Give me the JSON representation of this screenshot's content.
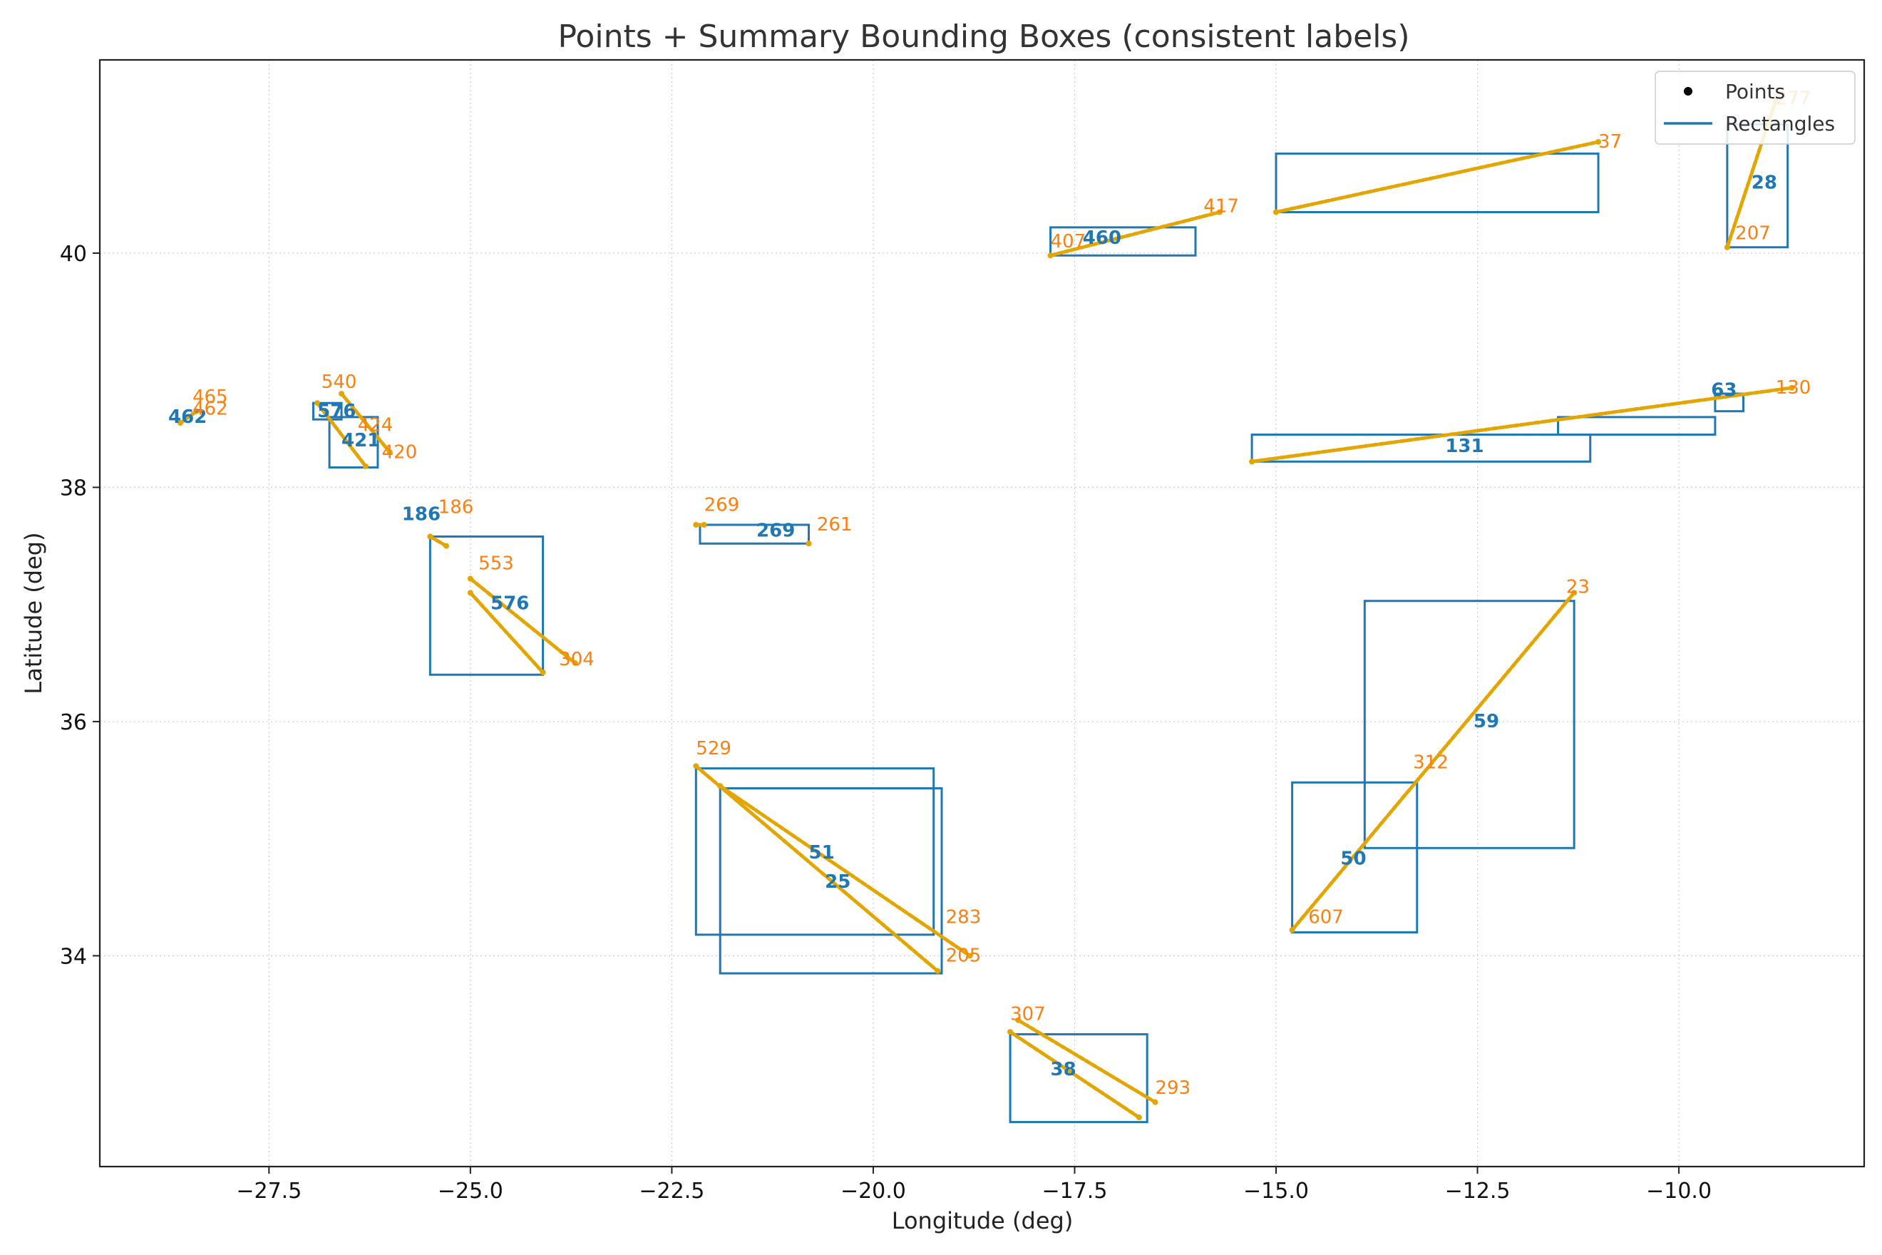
{
  "chart_data": {
    "type": "scatter",
    "title": "Points + Summary Bounding Boxes (consistent labels)",
    "xlabel": "Longitude (deg)",
    "ylabel": "Latitude (deg)",
    "xlim": [
      -29.6,
      -7.7
    ],
    "ylim": [
      32.2,
      41.65
    ],
    "xticks": [
      -27.5,
      -25.0,
      -22.5,
      -20.0,
      -17.5,
      -15.0,
      -12.5,
      -10.0
    ],
    "xtick_labels": [
      "−27.5",
      "−25.0",
      "−22.5",
      "−20.0",
      "−17.5",
      "−15.0",
      "−12.5",
      "−10.0"
    ],
    "yticks": [
      34,
      36,
      38,
      40
    ],
    "ytick_labels": [
      "34",
      "36",
      "38",
      "40"
    ],
    "grid": true,
    "legend_position": "top-right",
    "legend": [
      {
        "label": "Points",
        "marker": "dot",
        "color": "#000000"
      },
      {
        "label": "Rectangles",
        "marker": "line",
        "color": "#1f77b4"
      }
    ],
    "colors": {
      "points": "#e3a500",
      "point_labels": "#ff7f0e",
      "rectangles": "#1f77b4",
      "rect_labels": "#1f77b4"
    },
    "point_tracks": [
      {
        "from": [
          -15.0,
          40.35
        ],
        "to": [
          -11.0,
          40.95
        ]
      },
      {
        "from": [
          -17.8,
          39.98
        ],
        "to": [
          -15.7,
          40.35
        ]
      },
      {
        "from": [
          -9.4,
          40.05
        ],
        "to": [
          -8.8,
          41.3
        ]
      },
      {
        "from": [
          -15.3,
          38.22
        ],
        "to": [
          -8.6,
          38.85
        ]
      },
      {
        "from": [
          -14.8,
          34.22
        ],
        "to": [
          -11.3,
          37.1
        ]
      },
      {
        "from": [
          -22.2,
          35.62
        ],
        "to": [
          -19.2,
          33.87
        ]
      },
      {
        "from": [
          -21.9,
          35.45
        ],
        "to": [
          -18.8,
          34.0
        ]
      },
      {
        "from": [
          -25.0,
          37.1
        ],
        "to": [
          -24.1,
          36.42
        ]
      },
      {
        "from": [
          -25.0,
          37.22
        ],
        "to": [
          -23.7,
          36.5
        ]
      },
      {
        "from": [
          -18.3,
          33.35
        ],
        "to": [
          -16.7,
          32.62
        ]
      },
      {
        "from": [
          -18.2,
          33.45
        ],
        "to": [
          -16.5,
          32.75
        ]
      },
      {
        "from": [
          -26.9,
          38.72
        ],
        "to": [
          -26.3,
          38.18
        ]
      },
      {
        "from": [
          -26.6,
          38.8
        ],
        "to": [
          -26.0,
          38.3
        ]
      },
      {
        "from": [
          -25.5,
          37.58
        ],
        "to": [
          -25.3,
          37.5
        ]
      },
      {
        "from": [
          -28.6,
          38.55
        ],
        "to": [
          -28.4,
          38.65
        ]
      },
      {
        "from": [
          -22.2,
          37.68
        ],
        "to": [
          -22.1,
          37.68
        ]
      },
      {
        "from": [
          -20.8,
          37.52
        ],
        "to": [
          -20.8,
          37.52
        ]
      }
    ],
    "rectangles": [
      {
        "x0": -15.0,
        "x1": -11.0,
        "y0": 40.35,
        "y1": 40.85
      },
      {
        "x0": -17.8,
        "x1": -16.0,
        "y0": 39.98,
        "y1": 40.22
      },
      {
        "x0": -9.4,
        "x1": -8.65,
        "y0": 40.05,
        "y1": 41.1
      },
      {
        "x0": -15.3,
        "x1": -11.1,
        "y0": 38.22,
        "y1": 38.45
      },
      {
        "x0": -11.5,
        "x1": -9.55,
        "y0": 38.45,
        "y1": 38.6
      },
      {
        "x0": -9.55,
        "x1": -9.2,
        "y0": 38.65,
        "y1": 38.8
      },
      {
        "x0": -13.9,
        "x1": -11.3,
        "y0": 34.92,
        "y1": 37.03
      },
      {
        "x0": -14.8,
        "x1": -13.25,
        "y0": 34.2,
        "y1": 35.48
      },
      {
        "x0": -22.2,
        "x1": -19.25,
        "y0": 34.18,
        "y1": 35.6
      },
      {
        "x0": -21.9,
        "x1": -19.15,
        "y0": 33.85,
        "y1": 35.43
      },
      {
        "x0": -25.5,
        "x1": -24.1,
        "y0": 36.4,
        "y1": 37.58
      },
      {
        "x0": -22.15,
        "x1": -20.8,
        "y0": 37.52,
        "y1": 37.68
      },
      {
        "x0": -18.3,
        "x1": -16.6,
        "y0": 32.58,
        "y1": 33.33
      },
      {
        "x0": -26.75,
        "x1": -26.15,
        "y0": 38.17,
        "y1": 38.6
      },
      {
        "x0": -26.95,
        "x1": -26.6,
        "y0": 38.58,
        "y1": 38.72
      }
    ],
    "point_labels": [
      {
        "text": "186",
        "x": -25.4,
        "y": 37.78
      },
      {
        "text": "269",
        "x": -22.1,
        "y": 37.8
      },
      {
        "text": "261",
        "x": -20.7,
        "y": 37.63
      },
      {
        "text": "540",
        "x": -26.85,
        "y": 38.85
      },
      {
        "text": "424",
        "x": -26.4,
        "y": 38.48
      },
      {
        "text": "420",
        "x": -26.1,
        "y": 38.25
      },
      {
        "text": "465",
        "x": -28.45,
        "y": 38.72
      },
      {
        "text": "462",
        "x": -28.45,
        "y": 38.62
      },
      {
        "text": "304",
        "x": -23.9,
        "y": 36.48
      },
      {
        "text": "553",
        "x": -24.9,
        "y": 37.3
      },
      {
        "text": "529",
        "x": -22.2,
        "y": 35.72
      },
      {
        "text": "283",
        "x": -19.1,
        "y": 34.28
      },
      {
        "text": "205",
        "x": -19.1,
        "y": 33.95
      },
      {
        "text": "307",
        "x": -18.3,
        "y": 33.45
      },
      {
        "text": "293",
        "x": -16.5,
        "y": 32.82
      },
      {
        "text": "312",
        "x": -13.3,
        "y": 35.6
      },
      {
        "text": "23",
        "x": -11.4,
        "y": 37.1
      },
      {
        "text": "607",
        "x": -14.6,
        "y": 34.28
      },
      {
        "text": "417",
        "x": -15.9,
        "y": 40.35
      },
      {
        "text": "407",
        "x": -17.8,
        "y": 40.05
      },
      {
        "text": "37",
        "x": -11.0,
        "y": 40.9
      },
      {
        "text": "207",
        "x": -9.3,
        "y": 40.12
      },
      {
        "text": "277",
        "x": -8.8,
        "y": 41.27
      },
      {
        "text": "130",
        "x": -8.8,
        "y": 38.8
      }
    ],
    "rect_labels": [
      {
        "text": "186",
        "x": -25.85,
        "y": 37.72
      },
      {
        "text": "269",
        "x": -21.45,
        "y": 37.58
      },
      {
        "text": "462",
        "x": -28.75,
        "y": 38.55
      },
      {
        "text": "576",
        "x": -26.9,
        "y": 38.6
      },
      {
        "text": "421",
        "x": -26.6,
        "y": 38.35
      },
      {
        "text": "576",
        "x": -24.75,
        "y": 36.96
      },
      {
        "text": "51",
        "x": -20.8,
        "y": 34.83
      },
      {
        "text": "25",
        "x": -20.6,
        "y": 34.58
      },
      {
        "text": "38",
        "x": -17.8,
        "y": 32.98
      },
      {
        "text": "50",
        "x": -14.2,
        "y": 34.78
      },
      {
        "text": "59",
        "x": -12.55,
        "y": 35.95
      },
      {
        "text": "460",
        "x": -17.4,
        "y": 40.08
      },
      {
        "text": "28",
        "x": -9.1,
        "y": 40.55
      },
      {
        "text": "131",
        "x": -12.9,
        "y": 38.3
      },
      {
        "text": "63",
        "x": -9.6,
        "y": 38.78
      }
    ]
  },
  "legend": {
    "points_label": "Points",
    "rectangles_label": "Rectangles"
  }
}
